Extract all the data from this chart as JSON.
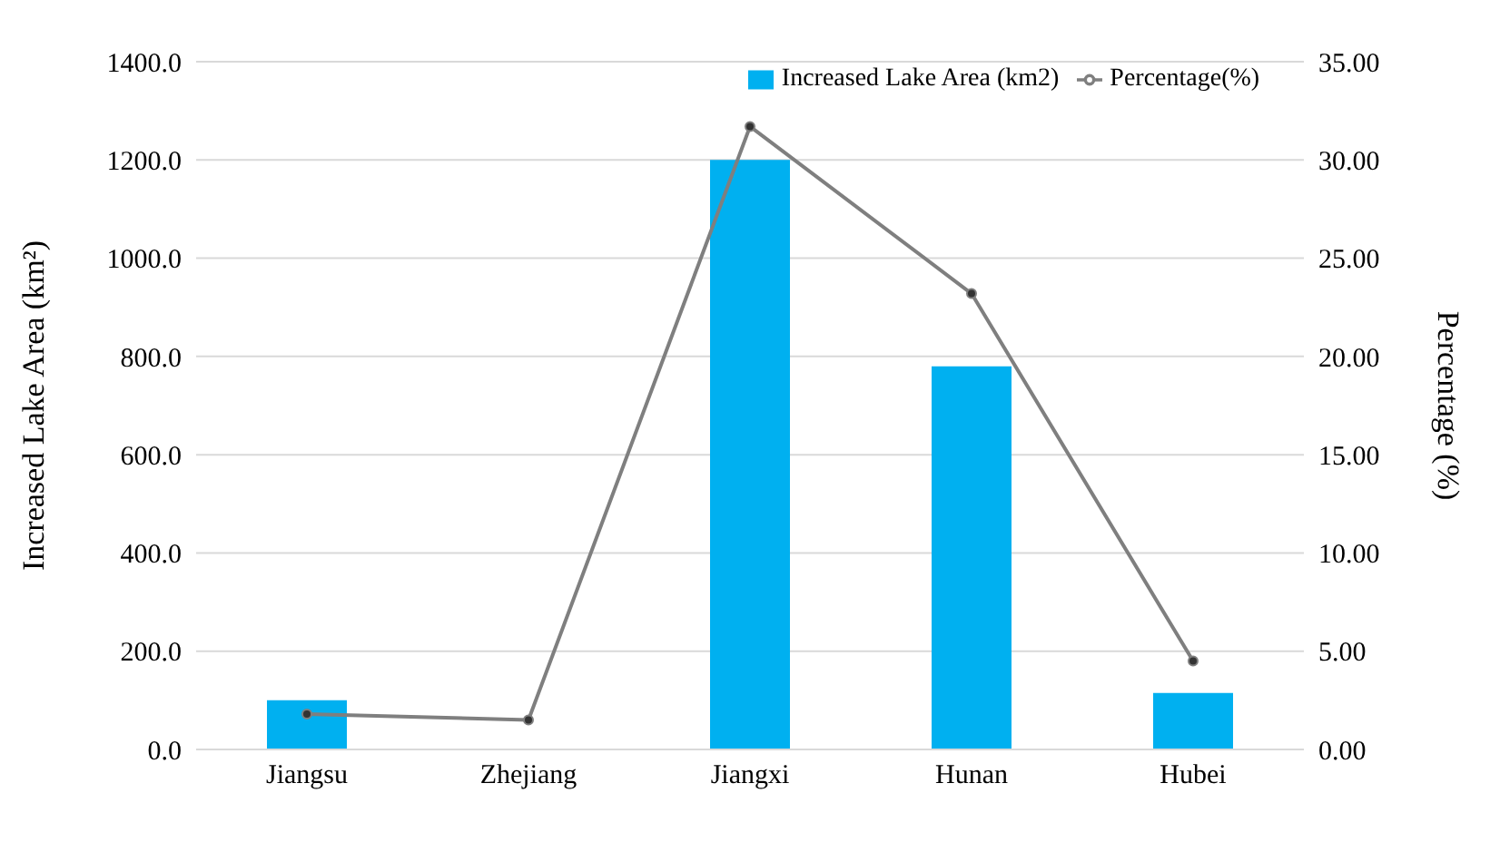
{
  "chart_data": {
    "type": "bar",
    "categories": [
      "Jiangsu",
      "Zhejiang",
      "Jiangxi",
      "Hunan",
      "Hubei"
    ],
    "series": [
      {
        "name": "Increased Lake Area (km2)",
        "color": "#00b0f0",
        "values": [
          100,
          0,
          1200,
          780,
          115
        ]
      },
      {
        "name": "Percentage(%)",
        "type": "line",
        "axis": "y2",
        "color": "#7f7f7f",
        "marker": "circle",
        "values": [
          1.8,
          1.5,
          31.7,
          23.2,
          4.5
        ]
      }
    ],
    "ylabel": "Increased Lake Area (km²)",
    "y2label": "Percentage (%)",
    "ylim": [
      0,
      1400
    ],
    "yticks": [
      {
        "value": 0,
        "label": "0.0"
      },
      {
        "value": 200,
        "label": "200.0"
      },
      {
        "value": 400,
        "label": "400.0"
      },
      {
        "value": 600,
        "label": "600.0"
      },
      {
        "value": 800,
        "label": "800.0"
      },
      {
        "value": 1000,
        "label": "1000.0"
      },
      {
        "value": 1200,
        "label": "1200.0"
      },
      {
        "value": 1400,
        "label": "1400.0"
      }
    ],
    "y2lim": [
      0,
      35
    ],
    "y2ticks": [
      {
        "value": 0,
        "label": "0.00"
      },
      {
        "value": 5,
        "label": "5.00"
      },
      {
        "value": 10,
        "label": "10.00"
      },
      {
        "value": 15,
        "label": "15.00"
      },
      {
        "value": 20,
        "label": "20.00"
      },
      {
        "value": 25,
        "label": "25.00"
      },
      {
        "value": 30,
        "label": "30.00"
      },
      {
        "value": 35,
        "label": "35.00"
      }
    ],
    "grid": "y",
    "legend": "top"
  }
}
